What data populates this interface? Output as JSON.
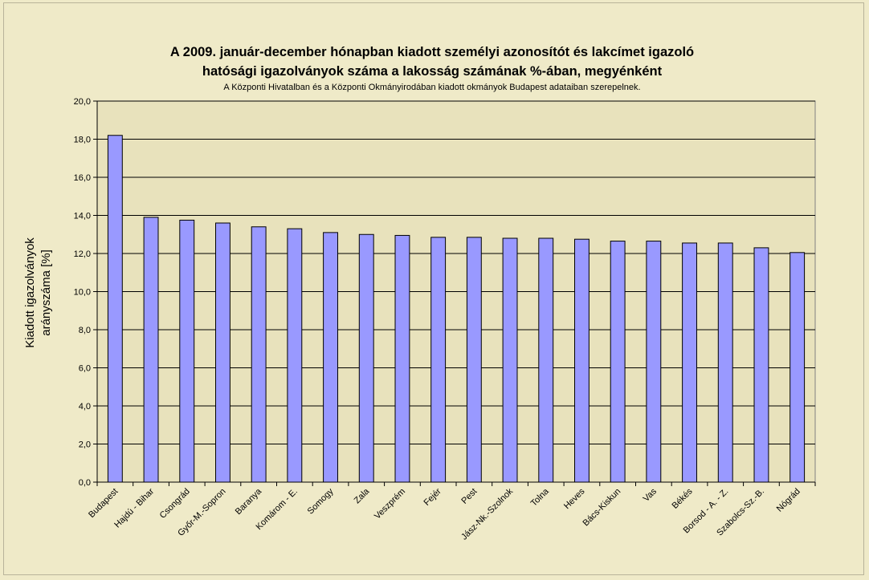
{
  "chart_data": {
    "type": "bar",
    "title_lines": [
      "A 2009. január-december hónapban kiadott személyi azonosítót és lakcímet igazoló",
      "hatósági igazolványok száma a lakosság  számának %-ában, megyénként"
    ],
    "subtitle": "A Központi Hivatalban és a Központi Okmányirodában kiadott okmányok Budapest adataiban szerepelnek.",
    "ylabel_lines": [
      "Kiadott igazolványok",
      "arányszáma [%]"
    ],
    "xlabel": "",
    "categories": [
      "Budapest",
      "Hajdú - Bihar",
      "Csongrád",
      "Győr-M.-Sopron",
      "Baranya",
      "Komárom - E.",
      "Somogy",
      "Zala",
      "Veszprém",
      "Fejér",
      "Pest",
      "Jász-Nk.-Szolnok",
      "Tolna",
      "Heves",
      "Bács-Kiskun",
      "Vas",
      "Békés",
      "Borsod - A. - Z.",
      "Szabolcs-Sz.-B.",
      "Nógrád"
    ],
    "values": [
      18.2,
      13.9,
      13.75,
      13.6,
      13.4,
      13.3,
      13.1,
      13.0,
      12.95,
      12.85,
      12.85,
      12.8,
      12.8,
      12.75,
      12.65,
      12.65,
      12.55,
      12.55,
      12.3,
      12.05
    ],
    "ylim": [
      0,
      20
    ],
    "yticks": [
      "0,0",
      "2,0",
      "4,0",
      "6,0",
      "8,0",
      "10,0",
      "12,0",
      "14,0",
      "16,0",
      "18,0",
      "20,0"
    ],
    "grid": true,
    "legend": "none",
    "colors": {
      "bar": "#9999ff",
      "bar_stroke": "#000000",
      "plot_bg": "#e8e2bc",
      "gridline": "#000000",
      "page_bg": "#efeac8"
    }
  }
}
